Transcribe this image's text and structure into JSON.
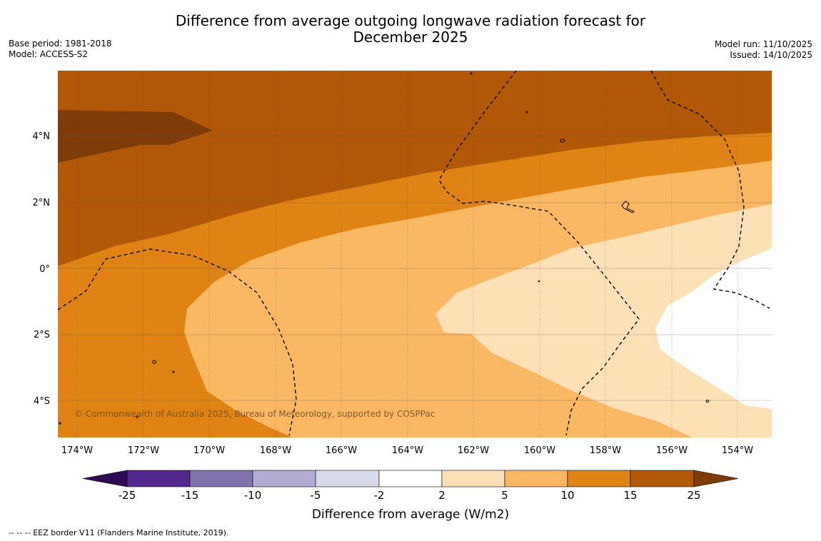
{
  "title": {
    "line1": "Difference from average outgoing longwave radiation forecast for",
    "line2": "December 2025"
  },
  "meta": {
    "base_period": "Base period: 1981-2018",
    "model": "Model: ACCESS-S2",
    "model_run": "Model run: 11/10/2025",
    "issued": "Issued: 14/10/2025"
  },
  "map": {
    "lat_labels": [
      "4°N",
      "2°N",
      "0°",
      "2°S",
      "4°S"
    ],
    "lon_labels": [
      "174°W",
      "172°W",
      "170°W",
      "168°W",
      "166°W",
      "164°W",
      "162°W",
      "160°W",
      "158°W",
      "156°W",
      "154°W"
    ],
    "copyright": "© Commonwealth of Australia 2025, Bureau of Meteorology, supported by COSPPac"
  },
  "colorbar": {
    "title": "Difference from average (W/m2)",
    "ticks": [
      "-25",
      "-15",
      "-10",
      "-5",
      "-2",
      "2",
      "5",
      "10",
      "15",
      "25"
    ],
    "colors": {
      "below_-25": "#2f0a55",
      "-25_-15": "#54278f",
      "-15_-10": "#8073ac",
      "-10_-5": "#b2abd2",
      "-5_-2": "#d8daeb",
      "-2_2": "#ffffff",
      "2_5": "#fee0b6",
      "5_10": "#fab862",
      "10_15": "#e08214",
      "15_25": "#b35806",
      "above_25": "#7f3b08"
    }
  },
  "footer": {
    "legend": "--  --  -- EEZ border V11 (Flanders Marine Institute, 2019)."
  }
}
